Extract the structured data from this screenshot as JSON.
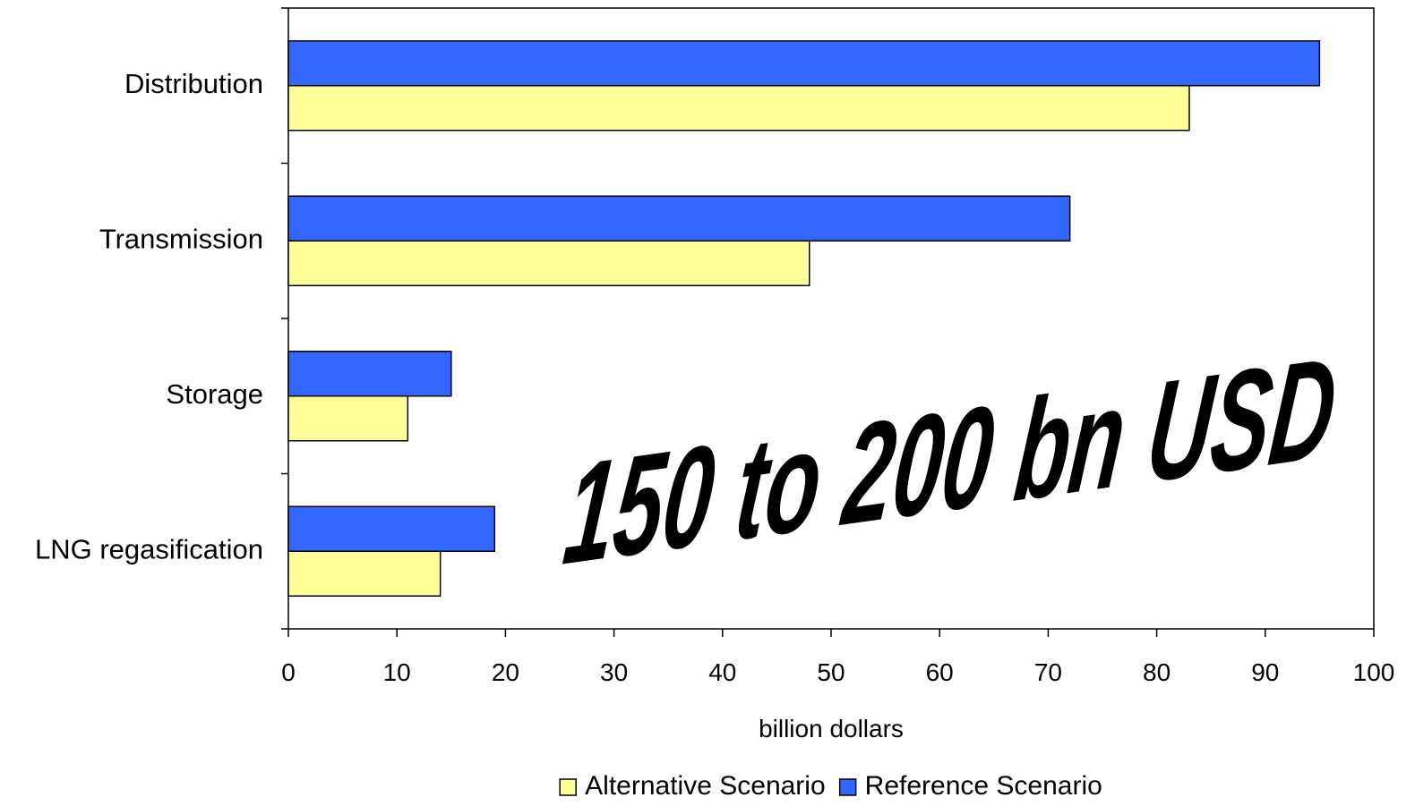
{
  "chart_data": {
    "type": "bar",
    "orientation": "horizontal",
    "categories": [
      "Distribution",
      "Transmission",
      "Storage",
      "LNG regasification"
    ],
    "series": [
      {
        "name": "Reference Scenario",
        "values": [
          95,
          72,
          15,
          19
        ],
        "color": "#3366ff"
      },
      {
        "name": "Alternative Scenario",
        "values": [
          83,
          48,
          11,
          14
        ],
        "color": "#ffff99"
      }
    ],
    "xlabel": "billion dollars",
    "ylabel": "",
    "xlim": [
      0,
      100
    ],
    "xticks": [
      "0",
      "10",
      "20",
      "30",
      "40",
      "50",
      "60",
      "70",
      "80",
      "90",
      "100"
    ],
    "legend": {
      "position": "bottom",
      "entries": [
        "Alternative Scenario",
        "Reference Scenario"
      ]
    },
    "annotation": "150 to 200 bn USD",
    "grid": false
  }
}
